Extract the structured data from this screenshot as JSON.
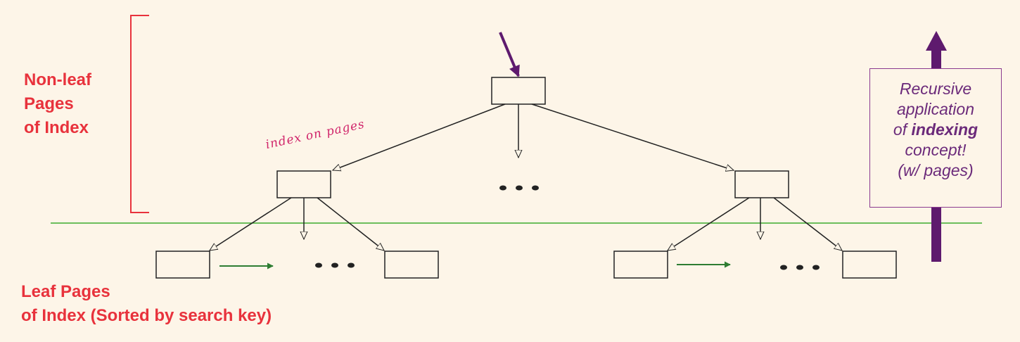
{
  "labels": {
    "nonleaf": [
      "Non-leaf",
      "Pages",
      "of Index"
    ],
    "leaf": [
      "Leaf Pages",
      "of Index (Sorted by search key)"
    ]
  },
  "annotation": "index on pages",
  "concept": {
    "line1": "Recursive",
    "line2": "application",
    "line3_pre": "of ",
    "line3_bold": "indexing",
    "line4": "concept!",
    "line5": "(w/ pages)"
  },
  "colors": {
    "background": "#fdf5e8",
    "label_red": "#e8323c",
    "annotation_pink": "#d0246a",
    "purple": "#5e1a6e",
    "green_line": "#3cab2e",
    "sibling_arrow": "#2e7d32"
  }
}
